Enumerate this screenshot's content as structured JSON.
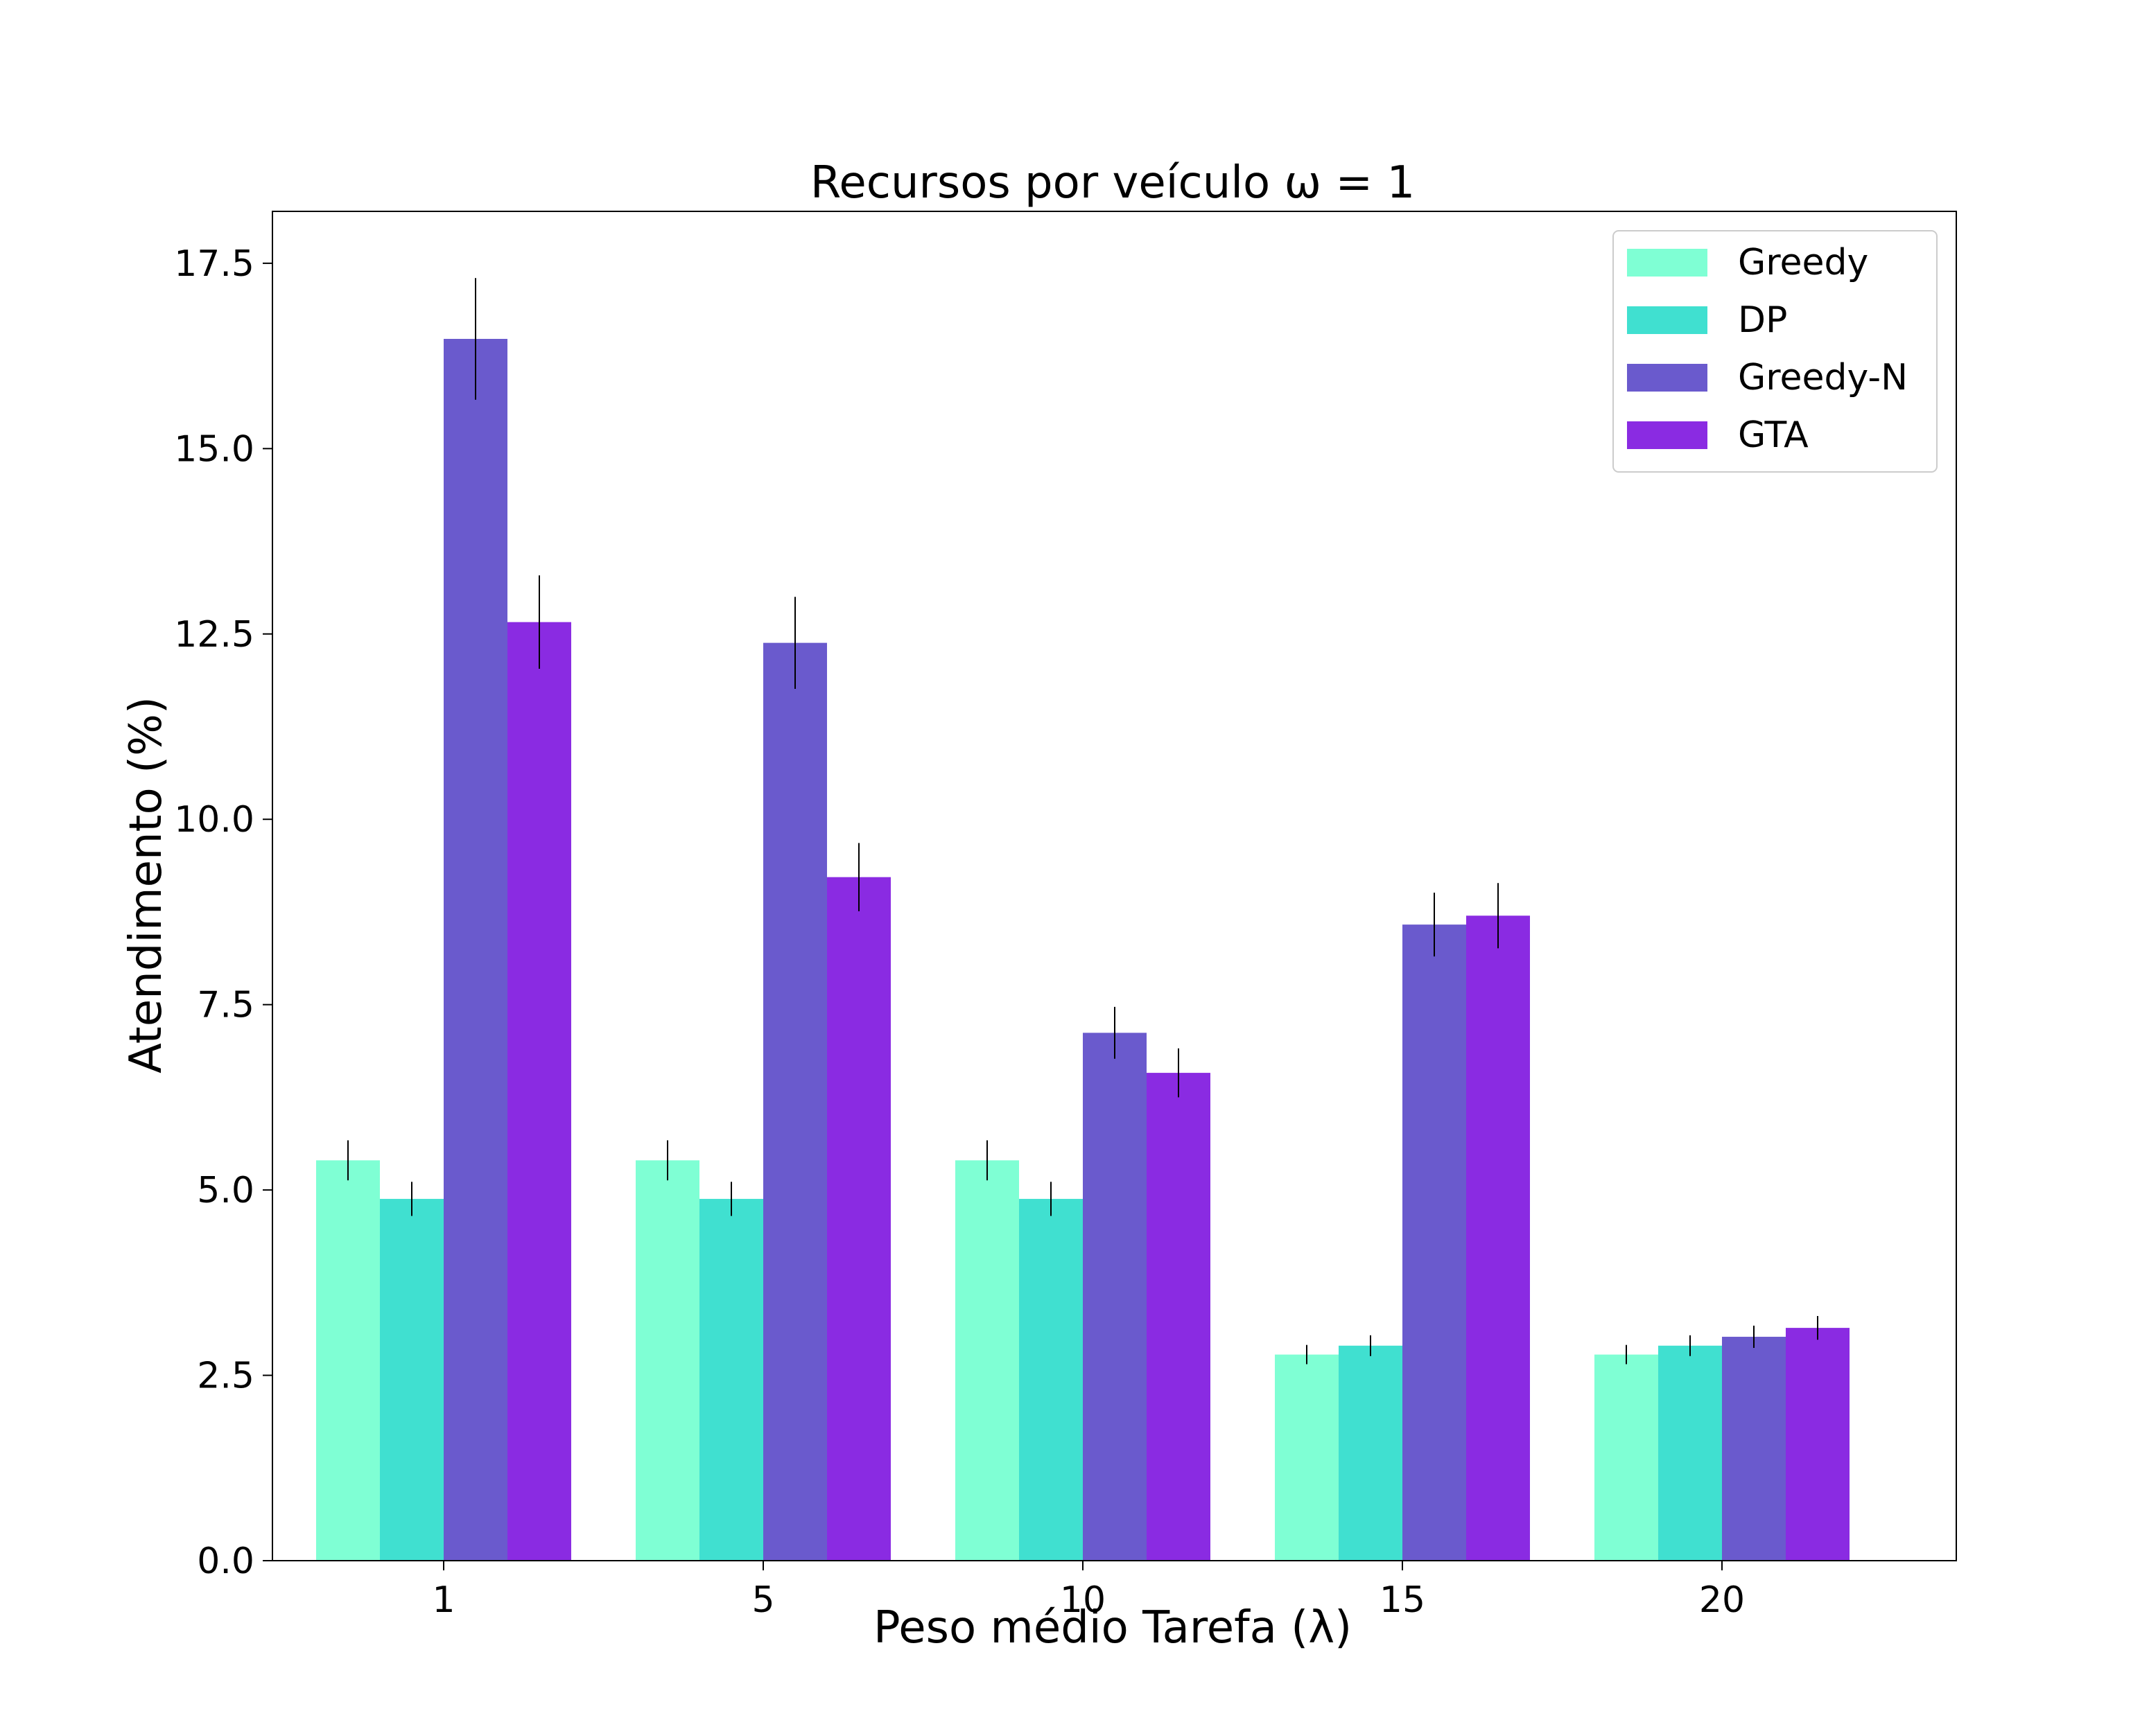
{
  "chart_data": {
    "type": "bar",
    "title": "Recursos por veículo ω = 1",
    "xlabel": "Peso médio Tarefa (λ)",
    "ylabel": "Atendimento (%)",
    "categories": [
      "1",
      "5",
      "10",
      "15",
      "20"
    ],
    "ylim": [
      0,
      18.2
    ],
    "yticks": [
      0.0,
      2.5,
      5.0,
      7.5,
      10.0,
      12.5,
      15.0,
      17.5
    ],
    "ytick_labels": [
      "0.0",
      "2.5",
      "5.0",
      "7.5",
      "10.0",
      "12.5",
      "15.0",
      "17.5"
    ],
    "grid": false,
    "legend_position": "top-right",
    "series": [
      {
        "name": "Greedy",
        "color": "#7fffd4",
        "values": [
          5.4,
          5.4,
          5.4,
          2.78,
          2.78
        ],
        "errors": [
          0.27,
          0.27,
          0.27,
          0.13,
          0.13
        ]
      },
      {
        "name": "DP",
        "color": "#40e0d0",
        "values": [
          4.88,
          4.88,
          4.88,
          2.9,
          2.9
        ],
        "errors": [
          0.23,
          0.23,
          0.23,
          0.14,
          0.14
        ]
      },
      {
        "name": "Greedy-N",
        "color": "#6a5acd",
        "values": [
          16.48,
          12.38,
          7.12,
          8.58,
          3.02
        ],
        "errors": [
          0.82,
          0.62,
          0.35,
          0.43,
          0.15
        ]
      },
      {
        "name": "GTA",
        "color": "#8a2be2",
        "values": [
          12.66,
          9.22,
          6.58,
          8.7,
          3.14
        ],
        "errors": [
          0.63,
          0.46,
          0.33,
          0.44,
          0.16
        ]
      }
    ]
  }
}
